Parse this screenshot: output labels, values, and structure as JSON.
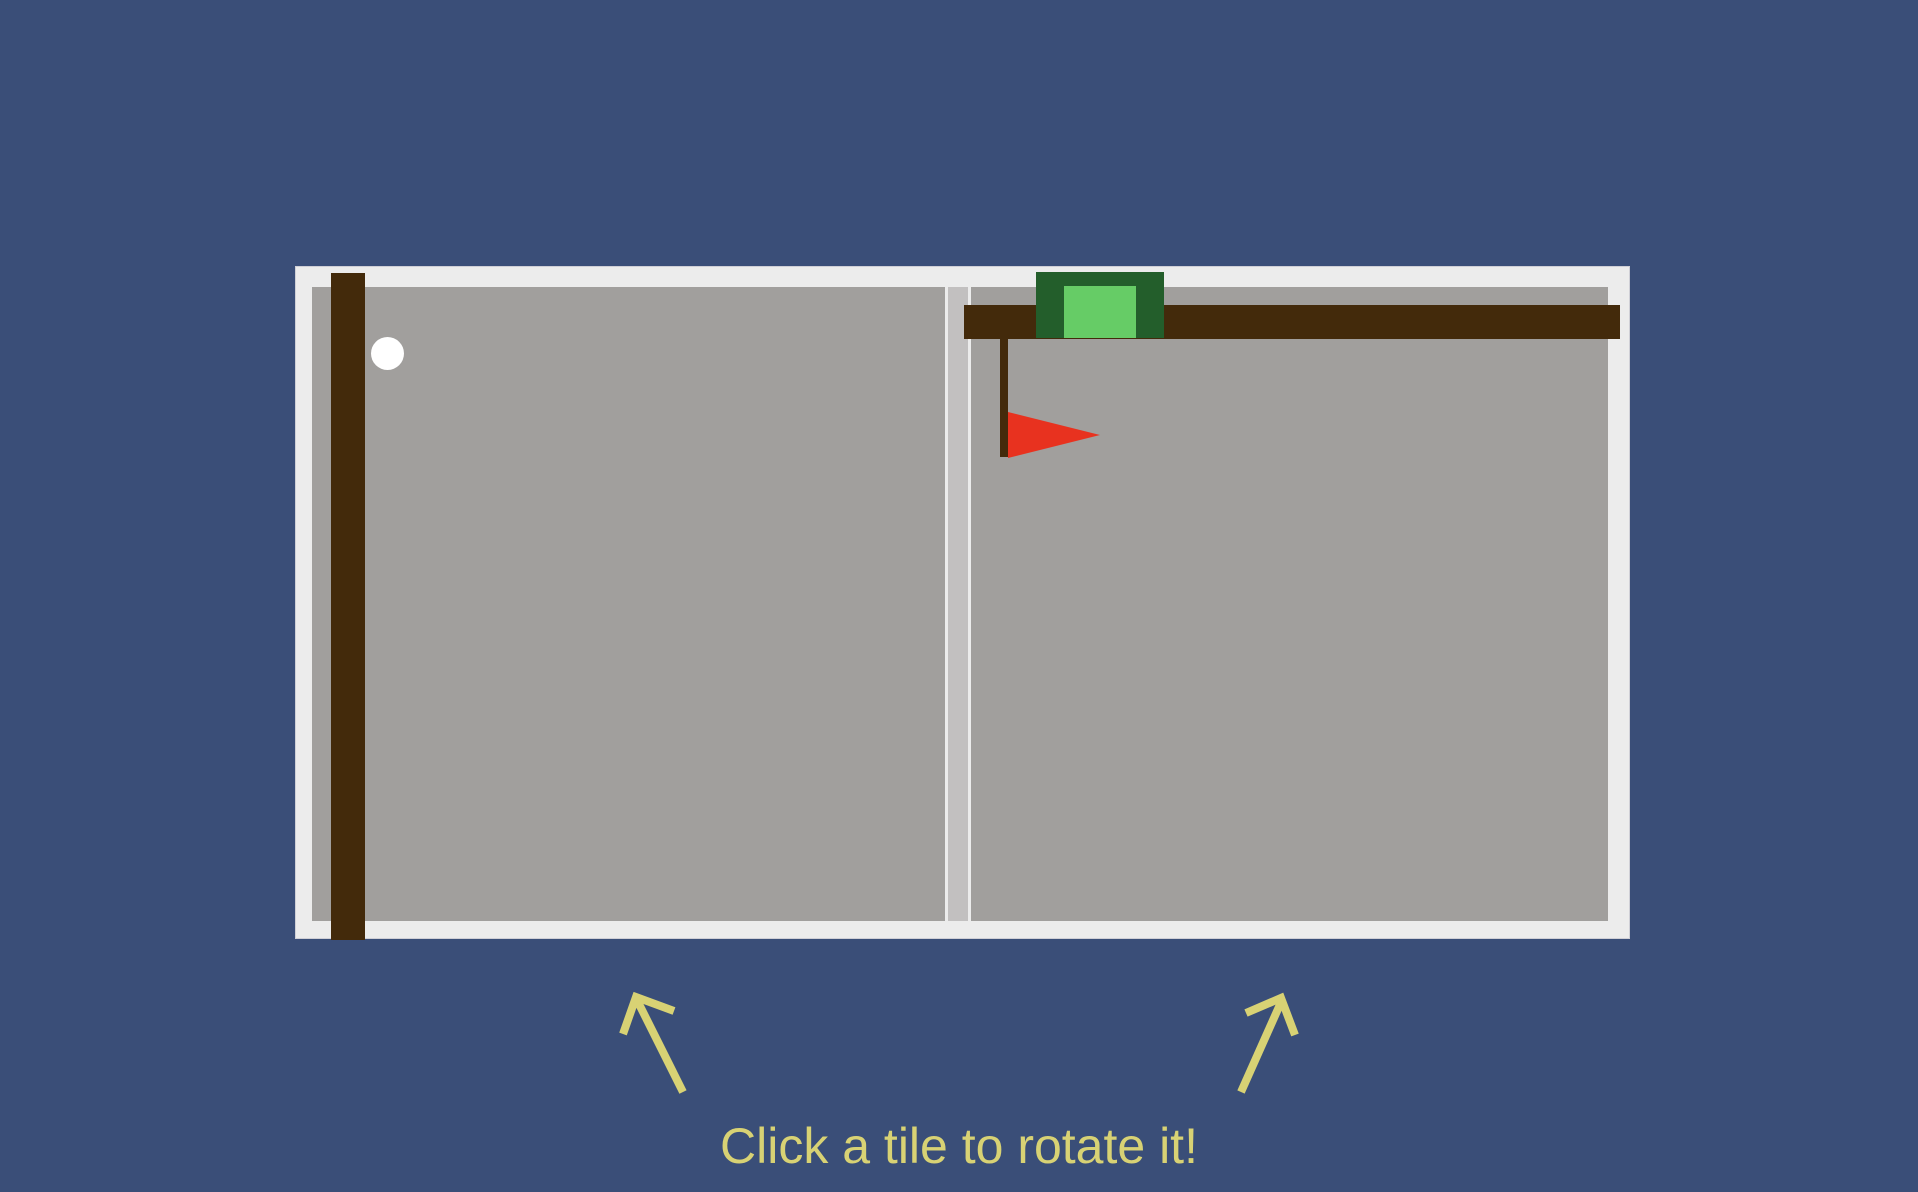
{
  "game": {
    "hint_text": "Click a tile to rotate it!"
  },
  "colors": {
    "background": "#3a4e78",
    "tile": "#a19f9d",
    "frame": "#ececec",
    "wall": "#432a0b",
    "goal_outer": "#235e2b",
    "goal_inner": "#66cc66",
    "flag": "#e8321f",
    "ball": "#ffffff",
    "hint_text": "#d8d274"
  },
  "icons": {
    "arrow_left": "arrow-up-left-icon",
    "arrow_right": "arrow-up-right-icon",
    "flag": "flag-icon",
    "ball": "ball-icon"
  }
}
